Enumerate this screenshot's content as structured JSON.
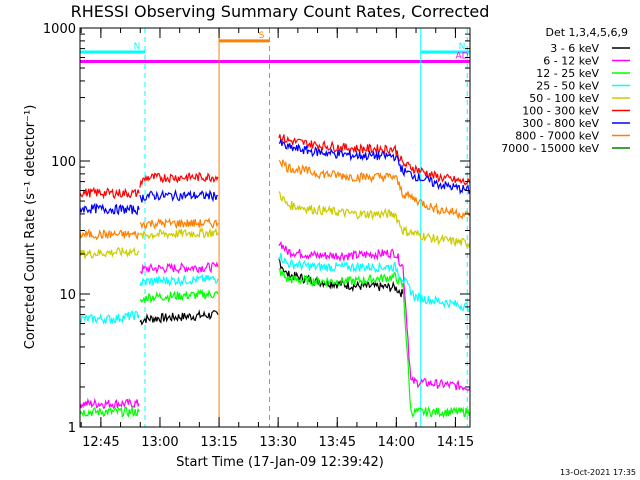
{
  "chart_data": {
    "type": "line",
    "title": "RHESSI Observing Summary Count Rates, Corrected",
    "xlabel": "Start Time (17-Jan-09 12:39:42)",
    "ylabel": "Corrected Count Rate (s⁻¹ detector⁻¹)",
    "x_unit": "minutes since 12:39:42",
    "xlim": [
      0,
      99
    ],
    "ylim": [
      1,
      1000
    ],
    "yscale": "log",
    "grid": false,
    "legend_position": "right",
    "legend_title": "Det 1,3,4,5,6,9",
    "x_ticks": [
      {
        "t": 5.3,
        "label": "12:45"
      },
      {
        "t": 20.3,
        "label": "13:00"
      },
      {
        "t": 35.3,
        "label": "13:15"
      },
      {
        "t": 50.3,
        "label": "13:30"
      },
      {
        "t": 65.3,
        "label": "13:45"
      },
      {
        "t": 80.3,
        "label": "14:00"
      },
      {
        "t": 95.3,
        "label": "14:15"
      }
    ],
    "y_ticks": [
      {
        "v": 1,
        "label": "1"
      },
      {
        "v": 10,
        "label": "10"
      },
      {
        "v": 100,
        "label": "100"
      },
      {
        "v": 1000,
        "label": "1000"
      }
    ],
    "series": [
      {
        "name": "3 - 6 keV",
        "color": "#000000",
        "segments": [
          [
            [
              15.2,
              6.2
            ],
            [
              16.5,
              6.5
            ],
            [
              35.0,
              7.0
            ]
          ],
          [
            [
              50.5,
              18
            ],
            [
              52.5,
              14
            ],
            [
              60,
              12.5
            ],
            [
              70,
              11.5
            ],
            [
              80,
              11.2
            ],
            [
              82,
              10.0
            ]
          ]
        ]
      },
      {
        "name": "6 - 12 keV",
        "color": "#ff00ff",
        "segments": [
          [
            [
              0,
              1.5
            ],
            [
              15.0,
              1.5
            ]
          ],
          [
            [
              15.2,
              15
            ],
            [
              17,
              15.5
            ],
            [
              35.0,
              16
            ]
          ],
          [
            [
              50.5,
              25
            ],
            [
              52.5,
              21
            ],
            [
              60,
              19.5
            ],
            [
              70,
              19.5
            ],
            [
              80,
              20.5
            ],
            [
              82,
              16
            ],
            [
              84,
              2.2
            ],
            [
              99,
              2.0
            ]
          ]
        ]
      },
      {
        "name": "12 - 25 keV",
        "color": "#00ff00",
        "segments": [
          [
            [
              0,
              1.3
            ],
            [
              15.0,
              1.3
            ]
          ],
          [
            [
              15.2,
              8.5
            ],
            [
              17,
              9.5
            ],
            [
              35.0,
              10
            ]
          ],
          [
            [
              50.5,
              15
            ],
            [
              52.5,
              13
            ],
            [
              60,
              12.5
            ],
            [
              70,
              12.5
            ],
            [
              80,
              13.5
            ],
            [
              82,
              11.5
            ],
            [
              84,
              1.3
            ],
            [
              99,
              1.3
            ]
          ]
        ]
      },
      {
        "name": "25 - 50 keV",
        "color": "#00ffff",
        "segments": [
          [
            [
              0,
              6.5
            ],
            [
              8,
              6.5
            ],
            [
              15.0,
              7.0
            ]
          ],
          [
            [
              15.2,
              12
            ],
            [
              17,
              12.5
            ],
            [
              35.0,
              13
            ]
          ],
          [
            [
              50.5,
              20
            ],
            [
              52.5,
              17
            ],
            [
              60,
              16
            ],
            [
              70,
              16
            ],
            [
              80,
              16
            ],
            [
              82,
              13
            ],
            [
              85,
              9.5
            ],
            [
              99,
              8.0
            ]
          ]
        ]
      },
      {
        "name": "50 - 100 keV",
        "color": "#cccc00",
        "segments": [
          [
            [
              0,
              20
            ],
            [
              15.0,
              21
            ]
          ],
          [
            [
              15.2,
              27
            ],
            [
              17,
              28
            ],
            [
              35.0,
              29
            ]
          ],
          [
            [
              50.5,
              58
            ],
            [
              52.5,
              47
            ],
            [
              60,
              43
            ],
            [
              70,
              40
            ],
            [
              80,
              40
            ],
            [
              82,
              30
            ],
            [
              90,
              26
            ],
            [
              99,
              24
            ]
          ]
        ]
      },
      {
        "name": "100 - 300 keV",
        "color": "#ff0000",
        "segments": [
          [
            [
              0,
              58
            ],
            [
              15.0,
              57
            ]
          ],
          [
            [
              15.2,
              68
            ],
            [
              17,
              75
            ],
            [
              35.0,
              76
            ]
          ],
          [
            [
              50.5,
              155
            ],
            [
              52.5,
              143
            ],
            [
              60,
              132
            ],
            [
              70,
              124
            ],
            [
              80,
              123
            ],
            [
              82,
              95
            ],
            [
              90,
              77
            ],
            [
              99,
              68
            ]
          ]
        ]
      },
      {
        "name": "300 - 800 keV",
        "color": "#0000ff",
        "segments": [
          [
            [
              0,
              44
            ],
            [
              15.0,
              43
            ]
          ],
          [
            [
              15.2,
              52
            ],
            [
              17,
              55
            ],
            [
              35.0,
              55
            ]
          ],
          [
            [
              50.5,
              138
            ],
            [
              52.5,
              127
            ],
            [
              60,
              117
            ],
            [
              70,
              110
            ],
            [
              80,
              109
            ],
            [
              82,
              84
            ],
            [
              90,
              68
            ],
            [
              99,
              60
            ]
          ]
        ]
      },
      {
        "name": "800 - 7000 keV",
        "color": "#ff8000",
        "segments": [
          [
            [
              0,
              28
            ],
            [
              15.0,
              28
            ]
          ],
          [
            [
              15.2,
              33
            ],
            [
              17,
              34
            ],
            [
              35.0,
              34
            ]
          ],
          [
            [
              50.5,
              105
            ],
            [
              52.5,
              90
            ],
            [
              60,
              81
            ],
            [
              70,
              76
            ],
            [
              80,
              76
            ],
            [
              82,
              57
            ],
            [
              90,
              44
            ],
            [
              99,
              39
            ]
          ]
        ]
      },
      {
        "name": "7000 - 15000 keV",
        "color": "#008000",
        "segments": []
      }
    ],
    "markers": [
      {
        "label": "N",
        "color": "#00ffff",
        "y": 660,
        "x_range": [
          0,
          16.5
        ]
      },
      {
        "label": "N",
        "color": "#00ffff",
        "y": 660,
        "x_range": [
          86.5,
          99
        ]
      },
      {
        "label": "S",
        "color": "#ff8000",
        "y": 800,
        "x_range": [
          35.3,
          48.1
        ]
      },
      {
        "label": "AD",
        "color": "#ff00ff",
        "y": 560,
        "x_range": [
          0,
          99
        ]
      }
    ],
    "vlines": [
      {
        "t": 0.0,
        "color": "#00ffff",
        "dashed": false
      },
      {
        "t": 16.5,
        "color": "#00ffff",
        "dashed": true
      },
      {
        "t": 35.3,
        "color": "#ff8000",
        "dashed": false
      },
      {
        "t": 48.1,
        "color": "#ff8000",
        "dashed": true
      },
      {
        "t": 86.5,
        "color": "#00ffff",
        "dashed": false
      },
      {
        "t": 98.3,
        "color": "#00ffff",
        "dashed": true
      }
    ]
  },
  "footer": {
    "timestamp": "13-Oct-2021 17:35"
  }
}
